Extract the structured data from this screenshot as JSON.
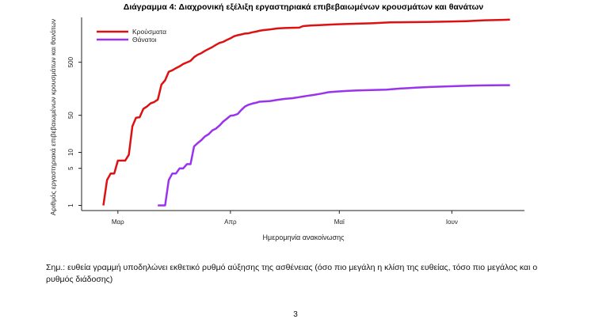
{
  "page": {
    "note": "Σημ.: ευθεία γραμμή υποδηλώνει εκθετικό ρυθμό αύξησης της ασθένειας (όσο πιο μεγάλη η κλίση της ευθείας, τόσο πιο μεγάλος και ο ρυθμός διάδοσης)",
    "page_number": "3"
  },
  "chart_data": {
    "type": "line",
    "title": "Διάγραμμα 4: Διαχρονική εξέλιξη εργαστηριακά επιβεβαιωμένων κρουσμάτων και θανάτων",
    "xlabel": "Ημερομηνία ανακοίνωσης",
    "ylabel": "Αριθμός εργαστηριακά επιβεβαιωμένων κρουσμάτων και θανάτων",
    "y_scale": "log",
    "ylim": [
      0.8,
      3500
    ],
    "yticks": [
      1,
      5,
      10,
      50,
      500
    ],
    "xlim": [
      "2020-02-20",
      "2020-06-21"
    ],
    "xticks": [
      {
        "date": "2020-03-01",
        "label": "Μαρ"
      },
      {
        "date": "2020-04-01",
        "label": "Απρ"
      },
      {
        "date": "2020-05-01",
        "label": "Μαϊ"
      },
      {
        "date": "2020-06-01",
        "label": "Ιουν"
      }
    ],
    "legend_position": "top-left",
    "grid": false,
    "series": [
      {
        "name": "Κρούσματα",
        "color": "#dd1111",
        "points": [
          [
            "2020-02-26",
            1
          ],
          [
            "2020-02-27",
            3
          ],
          [
            "2020-02-28",
            4
          ],
          [
            "2020-02-29",
            4
          ],
          [
            "2020-03-01",
            7
          ],
          [
            "2020-03-02",
            7
          ],
          [
            "2020-03-03",
            7
          ],
          [
            "2020-03-04",
            9
          ],
          [
            "2020-03-05",
            31
          ],
          [
            "2020-03-06",
            45
          ],
          [
            "2020-03-07",
            46
          ],
          [
            "2020-03-08",
            66
          ],
          [
            "2020-03-09",
            73
          ],
          [
            "2020-03-10",
            84
          ],
          [
            "2020-03-11",
            89
          ],
          [
            "2020-03-12",
            99
          ],
          [
            "2020-03-13",
            190
          ],
          [
            "2020-03-14",
            228
          ],
          [
            "2020-03-15",
            331
          ],
          [
            "2020-03-16",
            352
          ],
          [
            "2020-03-17",
            387
          ],
          [
            "2020-03-18",
            418
          ],
          [
            "2020-03-19",
            464
          ],
          [
            "2020-03-20",
            495
          ],
          [
            "2020-03-21",
            530
          ],
          [
            "2020-03-22",
            624
          ],
          [
            "2020-03-23",
            695
          ],
          [
            "2020-03-24",
            743
          ],
          [
            "2020-03-25",
            821
          ],
          [
            "2020-03-26",
            892
          ],
          [
            "2020-03-27",
            966
          ],
          [
            "2020-03-28",
            1061
          ],
          [
            "2020-03-29",
            1156
          ],
          [
            "2020-03-30",
            1212
          ],
          [
            "2020-03-31",
            1314
          ],
          [
            "2020-04-01",
            1415
          ],
          [
            "2020-04-02",
            1544
          ],
          [
            "2020-04-03",
            1613
          ],
          [
            "2020-04-04",
            1673
          ],
          [
            "2020-04-05",
            1735
          ],
          [
            "2020-04-06",
            1755
          ],
          [
            "2020-04-07",
            1832
          ],
          [
            "2020-04-08",
            1884
          ],
          [
            "2020-04-09",
            1955
          ],
          [
            "2020-04-10",
            2011
          ],
          [
            "2020-04-12",
            2081
          ],
          [
            "2020-04-14",
            2170
          ],
          [
            "2020-04-16",
            2207
          ],
          [
            "2020-04-18",
            2235
          ],
          [
            "2020-04-20",
            2245
          ],
          [
            "2020-04-21",
            2401
          ],
          [
            "2020-04-23",
            2463
          ],
          [
            "2020-04-26",
            2517
          ],
          [
            "2020-04-30",
            2591
          ],
          [
            "2020-05-05",
            2663
          ],
          [
            "2020-05-10",
            2710
          ],
          [
            "2020-05-15",
            2819
          ],
          [
            "2020-05-20",
            2850
          ],
          [
            "2020-05-25",
            2878
          ],
          [
            "2020-05-31",
            2917
          ],
          [
            "2020-06-05",
            2980
          ],
          [
            "2020-06-10",
            3088
          ],
          [
            "2020-06-15",
            3148
          ],
          [
            "2020-06-17",
            3190
          ]
        ]
      },
      {
        "name": "Θάνατοι",
        "color": "#9a33ee",
        "points": [
          [
            "2020-03-12",
            1
          ],
          [
            "2020-03-13",
            1
          ],
          [
            "2020-03-14",
            1
          ],
          [
            "2020-03-15",
            3
          ],
          [
            "2020-03-16",
            4
          ],
          [
            "2020-03-17",
            4
          ],
          [
            "2020-03-18",
            5
          ],
          [
            "2020-03-19",
            5
          ],
          [
            "2020-03-20",
            6
          ],
          [
            "2020-03-21",
            6
          ],
          [
            "2020-03-22",
            13
          ],
          [
            "2020-03-23",
            15
          ],
          [
            "2020-03-24",
            17
          ],
          [
            "2020-03-25",
            20
          ],
          [
            "2020-03-26",
            22
          ],
          [
            "2020-03-27",
            26
          ],
          [
            "2020-03-28",
            28
          ],
          [
            "2020-03-29",
            32
          ],
          [
            "2020-03-30",
            38
          ],
          [
            "2020-03-31",
            43
          ],
          [
            "2020-04-01",
            49
          ],
          [
            "2020-04-02",
            50
          ],
          [
            "2020-04-03",
            53
          ],
          [
            "2020-04-04",
            63
          ],
          [
            "2020-04-05",
            73
          ],
          [
            "2020-04-06",
            79
          ],
          [
            "2020-04-07",
            83
          ],
          [
            "2020-04-08",
            86
          ],
          [
            "2020-04-09",
            90
          ],
          [
            "2020-04-10",
            91
          ],
          [
            "2020-04-12",
            93
          ],
          [
            "2020-04-14",
            98
          ],
          [
            "2020-04-16",
            102
          ],
          [
            "2020-04-18",
            105
          ],
          [
            "2020-04-20",
            110
          ],
          [
            "2020-04-22",
            116
          ],
          [
            "2020-04-24",
            121
          ],
          [
            "2020-04-26",
            128
          ],
          [
            "2020-04-28",
            136
          ],
          [
            "2020-04-30",
            140
          ],
          [
            "2020-05-03",
            144
          ],
          [
            "2020-05-06",
            147
          ],
          [
            "2020-05-10",
            150
          ],
          [
            "2020-05-14",
            152
          ],
          [
            "2020-05-18",
            160
          ],
          [
            "2020-05-22",
            166
          ],
          [
            "2020-05-26",
            171
          ],
          [
            "2020-05-30",
            175
          ],
          [
            "2020-06-04",
            179
          ],
          [
            "2020-06-08",
            182
          ],
          [
            "2020-06-12",
            184
          ],
          [
            "2020-06-17",
            185
          ]
        ]
      }
    ]
  }
}
